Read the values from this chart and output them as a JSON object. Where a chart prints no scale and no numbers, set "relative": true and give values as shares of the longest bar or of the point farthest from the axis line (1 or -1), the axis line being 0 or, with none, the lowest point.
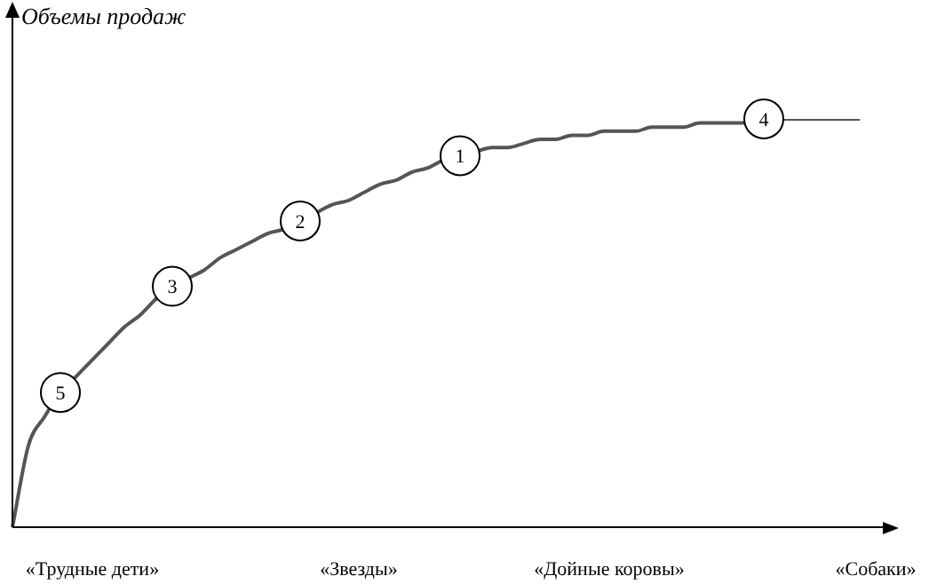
{
  "chart_data": {
    "type": "line",
    "relative": true,
    "ylabel": "Объемы продаж",
    "categories": [
      null,
      null,
      null,
      null,
      null,
      null,
      null,
      null,
      null,
      null,
      null,
      null,
      null,
      null,
      null,
      null,
      null,
      null,
      null,
      null,
      null,
      null,
      null,
      null,
      null,
      null,
      null,
      null,
      null,
      null,
      null,
      null,
      null,
      null,
      null,
      null,
      null,
      null,
      null,
      null,
      null,
      null,
      null,
      null,
      null,
      null,
      null,
      null,
      null,
      null,
      null,
      null,
      null,
      null
    ],
    "series": [
      {
        "color": "#555555",
        "values": [
          0,
          0.2,
          0.27,
          0.33,
          0.37,
          0.41,
          0.45,
          0.49,
          0.52,
          0.56,
          0.59,
          0.61,
          0.63,
          0.66,
          0.68,
          0.7,
          0.72,
          0.73,
          0.75,
          0.77,
          0.79,
          0.8,
          0.82,
          0.84,
          0.85,
          0.87,
          0.88,
          0.9,
          0.91,
          0.92,
          0.93,
          0.93,
          0.94,
          0.95,
          0.95,
          0.96,
          0.96,
          0.97,
          0.97,
          0.97,
          0.98,
          0.98,
          0.98,
          0.99,
          0.99,
          0.99,
          0.99,
          1,
          1,
          1,
          1,
          1,
          1,
          1
        ]
      }
    ],
    "annotations": [
      "«Трудные дети»",
      "«Звезды»",
      "«Дойные коровы»",
      "«Собаки»",
      {
        "text": "5",
        "y": 0.33
      },
      {
        "text": "3",
        "y": 0.59
      },
      {
        "text": "2",
        "y": 0.75
      },
      {
        "text": "1",
        "y": 0.91
      },
      {
        "text": "4",
        "y": 1
      }
    ],
    "legend": false,
    "marker": "none"
  }
}
